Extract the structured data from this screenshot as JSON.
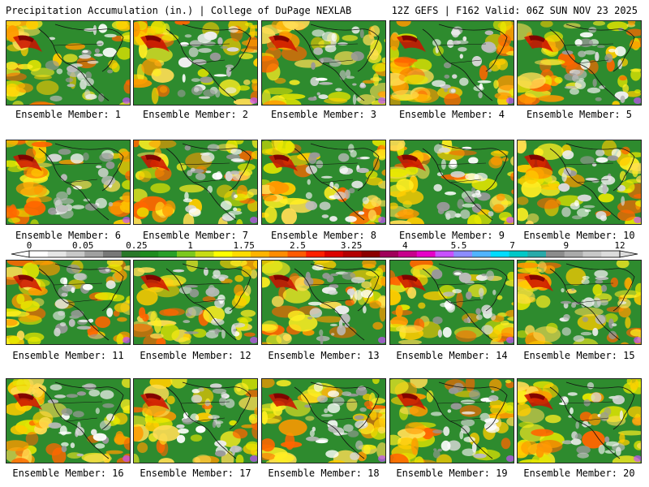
{
  "header": {
    "left": "Precipitation Accumulation (in.) | College of DuPage NEXLAB",
    "right": "12Z GEFS | F162 Valid: 06Z SUN NOV 23 2025"
  },
  "members": [
    {
      "label": "Ensemble Member: 1"
    },
    {
      "label": "Ensemble Member: 2"
    },
    {
      "label": "Ensemble Member: 3"
    },
    {
      "label": "Ensemble Member: 4"
    },
    {
      "label": "Ensemble Member: 5"
    },
    {
      "label": "Ensemble Member: 6"
    },
    {
      "label": "Ensemble Member: 7"
    },
    {
      "label": "Ensemble Member: 8"
    },
    {
      "label": "Ensemble Member: 9"
    },
    {
      "label": "Ensemble Member: 10"
    },
    {
      "label": "Ensemble Member: 11"
    },
    {
      "label": "Ensemble Member: 12"
    },
    {
      "label": "Ensemble Member: 13"
    },
    {
      "label": "Ensemble Member: 14"
    },
    {
      "label": "Ensemble Member: 15"
    },
    {
      "label": "Ensemble Member: 16"
    },
    {
      "label": "Ensemble Member: 17"
    },
    {
      "label": "Ensemble Member: 18"
    },
    {
      "label": "Ensemble Member: 19"
    },
    {
      "label": "Ensemble Member: 20"
    }
  ],
  "colorbar": {
    "tick_labels": [
      "0",
      "0.05",
      "0.25",
      "1",
      "1.75",
      "2.5",
      "3.25",
      "4",
      "5.5",
      "7",
      "9",
      "12"
    ],
    "colors": [
      "#ffffff",
      "#e6e6e6",
      "#c8c8c8",
      "#a0a0a0",
      "#787878",
      "#287828",
      "#1e8c1e",
      "#28a028",
      "#7cc81e",
      "#c8dc14",
      "#ffff00",
      "#ffdc00",
      "#ffb400",
      "#ff8c00",
      "#ff5a00",
      "#ff1e00",
      "#dc0000",
      "#b40000",
      "#8c0000",
      "#a0005a",
      "#c8008c",
      "#e600c8",
      "#c850ff",
      "#8c8cff",
      "#50b4ff",
      "#00dcff",
      "#00c8c8",
      "#28aaaa",
      "#8c8c8c",
      "#aaaaaa",
      "#c8c8c8",
      "#dcdcdc"
    ]
  }
}
